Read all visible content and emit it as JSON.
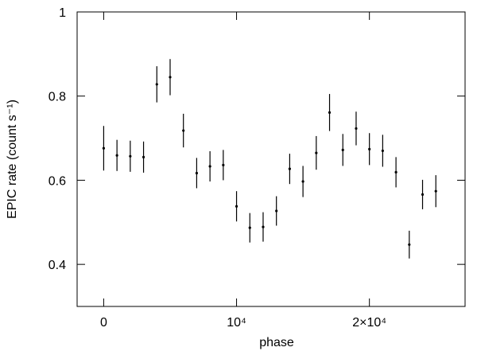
{
  "chart_data": {
    "type": "scatter",
    "xlabel": "phase",
    "ylabel": "EPIC rate (count s⁻¹)",
    "x": [
      0,
      1000,
      2000,
      3000,
      4000,
      5000,
      6000,
      7000,
      8000,
      9000,
      10000,
      11000,
      12000,
      13000,
      14000,
      15000,
      16000,
      17000,
      18000,
      19000,
      20000,
      21000,
      22000,
      23000,
      24000,
      25000
    ],
    "series": [
      {
        "color": "#000000",
        "values": [
          0.676,
          0.659,
          0.657,
          0.655,
          0.828,
          0.845,
          0.718,
          0.617,
          0.633,
          0.636,
          0.538,
          0.487,
          0.489,
          0.527,
          0.627,
          0.597,
          0.665,
          0.761,
          0.672,
          0.723,
          0.674,
          0.67,
          0.619,
          0.447,
          0.566,
          0.574
        ],
        "errors": [
          0.053,
          0.037,
          0.037,
          0.037,
          0.043,
          0.043,
          0.04,
          0.036,
          0.036,
          0.036,
          0.036,
          0.035,
          0.035,
          0.035,
          0.036,
          0.037,
          0.04,
          0.044,
          0.038,
          0.04,
          0.038,
          0.038,
          0.036,
          0.033,
          0.035,
          0.038
        ]
      }
    ],
    "xlim": [
      -2000,
      27200
    ],
    "ylim": [
      0.3,
      1
    ],
    "xticks": [
      0,
      {
        "value": 10000,
        "label": "10⁴"
      },
      {
        "value": 20000,
        "label": "2×10⁴"
      }
    ],
    "yticks": [
      0.4,
      0.6,
      0.8,
      1
    ]
  }
}
